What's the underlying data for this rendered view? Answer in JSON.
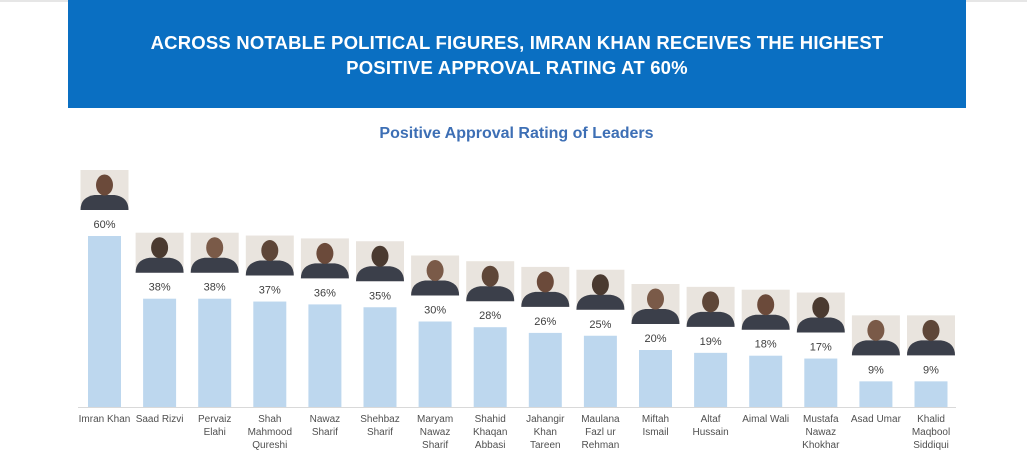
{
  "header": {
    "title": "ACROSS NOTABLE POLITICAL FIGURES, IMRAN KHAN RECEIVES THE HIGHEST POSITIVE APPROVAL RATING AT 60%",
    "banner_color": "#0a6fc2"
  },
  "chart_data": {
    "type": "bar",
    "title": "Positive Approval Rating of Leaders",
    "xlabel": "",
    "ylabel": "",
    "ylim": [
      0,
      60
    ],
    "grid": false,
    "bar_color": "#bdd7ee",
    "title_color": "#3d6fb5",
    "categories": [
      "Imran Khan",
      "Saad Rizvi",
      "Pervaiz Elahi",
      "Shah Mahmood Qureshi",
      "Nawaz Sharif",
      "Shehbaz Sharif",
      "Maryam Nawaz Sharif",
      "Shahid Khaqan Abbasi",
      "Jahangir Khan Tareen",
      "Maulana Fazl ur Rehman",
      "Miftah Ismail",
      "Altaf Hussain",
      "Aimal Wali",
      "Mustafa Nawaz Khokhar",
      "Asad Umar",
      "Khalid Maqbool Siddiqui"
    ],
    "category_lines": [
      [
        "Imran Khan"
      ],
      [
        "Saad Rizvi"
      ],
      [
        "Pervaiz",
        "Elahi"
      ],
      [
        "Shah",
        "Mahmood",
        "Qureshi"
      ],
      [
        "Nawaz",
        "Sharif"
      ],
      [
        "Shehbaz",
        "Sharif"
      ],
      [
        "Maryam",
        "Nawaz",
        "Sharif"
      ],
      [
        "Shahid",
        "Khaqan",
        "Abbasi"
      ],
      [
        "Jahangir",
        "Khan",
        "Tareen"
      ],
      [
        "Maulana",
        "Fazl ur",
        "Rehman"
      ],
      [
        "Miftah",
        "Ismail"
      ],
      [
        "Altaf",
        "Hussain"
      ],
      [
        "Aimal Wali"
      ],
      [
        "Mustafa",
        "Nawaz",
        "Khokhar"
      ],
      [
        "Asad Umar"
      ],
      [
        "Khalid",
        "Maqbool",
        "Siddiqui"
      ]
    ],
    "values": [
      60,
      38,
      38,
      37,
      36,
      35,
      30,
      28,
      26,
      25,
      20,
      19,
      18,
      17,
      9,
      9
    ],
    "data_labels": [
      "60%",
      "38%",
      "38%",
      "37%",
      "36%",
      "35%",
      "30%",
      "28%",
      "26%",
      "25%",
      "20%",
      "19%",
      "18%",
      "17%",
      "9%",
      "9%"
    ]
  }
}
